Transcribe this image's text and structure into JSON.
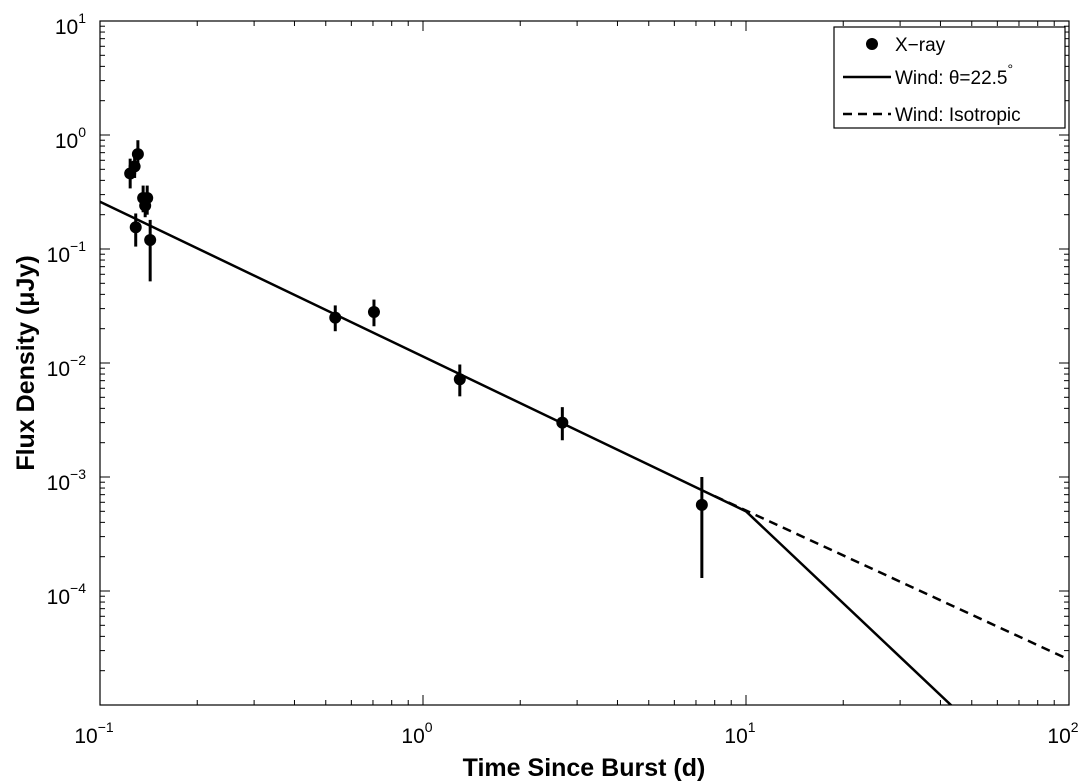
{
  "chart_data": {
    "type": "scatter",
    "xscale": "log",
    "yscale": "log",
    "xlim": [
      0.1,
      100
    ],
    "ylim": [
      1e-05,
      10
    ],
    "xlabel": "Time Since Burst (d)",
    "ylabel": "Flux Density (μJy)",
    "x_ticks": [
      {
        "value": 0.1,
        "base": "10",
        "exp": "−1"
      },
      {
        "value": 1,
        "base": "10",
        "exp": "0"
      },
      {
        "value": 10,
        "base": "10",
        "exp": "1"
      },
      {
        "value": 100,
        "base": "10",
        "exp": "2"
      }
    ],
    "y_ticks": [
      {
        "value": 0.0001,
        "base": "10",
        "exp": "−4"
      },
      {
        "value": 0.001,
        "base": "10",
        "exp": "−3"
      },
      {
        "value": 0.01,
        "base": "10",
        "exp": "−2"
      },
      {
        "value": 0.1,
        "base": "10",
        "exp": "−1"
      },
      {
        "value": 1,
        "base": "10",
        "exp": "0"
      },
      {
        "value": 10,
        "base": "10",
        "exp": "1"
      }
    ],
    "grid": false,
    "legend_position": "top-right",
    "series": [
      {
        "name": "X−ray",
        "kind": "points",
        "color": "#000000",
        "points": [
          {
            "x": 0.124,
            "y": 0.46,
            "ylo": 0.34,
            "yhi": 0.62
          },
          {
            "x": 0.128,
            "y": 0.53,
            "ylo": 0.42,
            "yhi": 0.66
          },
          {
            "x": 0.131,
            "y": 0.68,
            "ylo": 0.52,
            "yhi": 0.9
          },
          {
            "x": 0.129,
            "y": 0.155,
            "ylo": 0.105,
            "yhi": 0.205
          },
          {
            "x": 0.136,
            "y": 0.28,
            "ylo": 0.21,
            "yhi": 0.36
          },
          {
            "x": 0.138,
            "y": 0.24,
            "ylo": 0.19,
            "yhi": 0.3
          },
          {
            "x": 0.14,
            "y": 0.28,
            "ylo": 0.2,
            "yhi": 0.36
          },
          {
            "x": 0.143,
            "y": 0.12,
            "ylo": 0.052,
            "yhi": 0.18
          },
          {
            "x": 0.535,
            "y": 0.025,
            "ylo": 0.019,
            "yhi": 0.032
          },
          {
            "x": 0.705,
            "y": 0.028,
            "ylo": 0.021,
            "yhi": 0.036
          },
          {
            "x": 1.3,
            "y": 0.0072,
            "ylo": 0.0051,
            "yhi": 0.0097
          },
          {
            "x": 2.7,
            "y": 0.003,
            "ylo": 0.0021,
            "yhi": 0.0041
          },
          {
            "x": 7.3,
            "y": 0.00057,
            "ylo": 0.00013,
            "yhi": 0.001
          }
        ]
      },
      {
        "name": "Wind: θ=22.5",
        "name_sup": "°",
        "kind": "line",
        "dash": "solid",
        "color": "#000000",
        "points": [
          {
            "x": 0.1,
            "y": 0.26
          },
          {
            "x": 10,
            "y": 0.0005
          },
          {
            "x": 55,
            "y": 5.2e-06
          }
        ]
      },
      {
        "name": "Wind: Isotropic",
        "kind": "line",
        "dash": "dashed",
        "color": "#000000",
        "points": [
          {
            "x": 8,
            "y": 0.00068
          },
          {
            "x": 100,
            "y": 2.5e-05
          }
        ]
      }
    ]
  }
}
